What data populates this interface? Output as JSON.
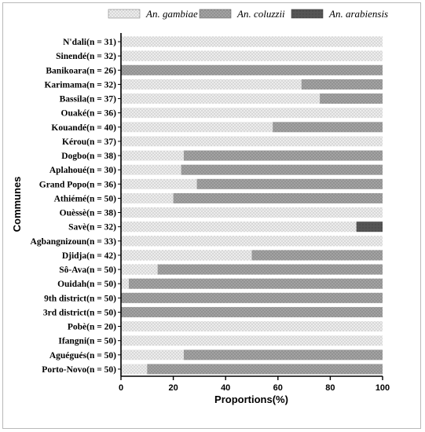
{
  "chart_data": {
    "type": "bar",
    "orientation": "horizontal",
    "stacked": true,
    "ylabel": "Communes",
    "xlabel": "Proportions(%)",
    "xlim": [
      0,
      100
    ],
    "xticks": [
      "0",
      "20",
      "40",
      "60",
      "80",
      "100"
    ],
    "legend_position": "top",
    "categories": [
      "N'dali(n = 31)",
      "Sinendé(n = 32)",
      "Banikoara(n = 26)",
      "Karimama(n = 32)",
      "Bassila(n = 37)",
      "Ouaké(n = 36)",
      "Kouandé(n = 40)",
      "Kérou(n = 37)",
      "Dogbo(n = 38)",
      "Aplahoué(n = 30)",
      "Grand Popo(n = 36)",
      "Athiémé(n = 50)",
      "Ouèssè(n = 38)",
      "Savè(n = 32)",
      "Agbangnizoun(n = 33)",
      "Djidja(n = 42)",
      "Sô-Ava(n = 50)",
      "Ouidah(n = 50)",
      "9th district(n = 50)",
      "3rd district(n = 50)",
      "Pobè(n = 20)",
      "Ifangni(n = 50)",
      "Aguégués(n = 50)",
      "Porto-Novo(n = 50)"
    ],
    "series": [
      {
        "name": "An. gambiae",
        "color": "#e6e6e6",
        "pattern": "fine-dots",
        "values": [
          100,
          100,
          0,
          69,
          76,
          100,
          58,
          100,
          24,
          23,
          29,
          20,
          100,
          90,
          100,
          50,
          14,
          3,
          0,
          0,
          100,
          100,
          24,
          10
        ]
      },
      {
        "name": "An. coluzzii",
        "color": "#9b9b9b",
        "pattern": "dots",
        "values": [
          0,
          0,
          100,
          31,
          24,
          0,
          42,
          0,
          76,
          77,
          71,
          80,
          0,
          0,
          0,
          50,
          86,
          97,
          100,
          100,
          0,
          0,
          76,
          90
        ]
      },
      {
        "name": "An. arabiensis",
        "color": "#555555",
        "pattern": "solid",
        "values": [
          0,
          0,
          0,
          0,
          0,
          0,
          0,
          0,
          0,
          0,
          0,
          0,
          0,
          10,
          0,
          0,
          0,
          0,
          0,
          0,
          0,
          0,
          0,
          0
        ]
      }
    ]
  }
}
